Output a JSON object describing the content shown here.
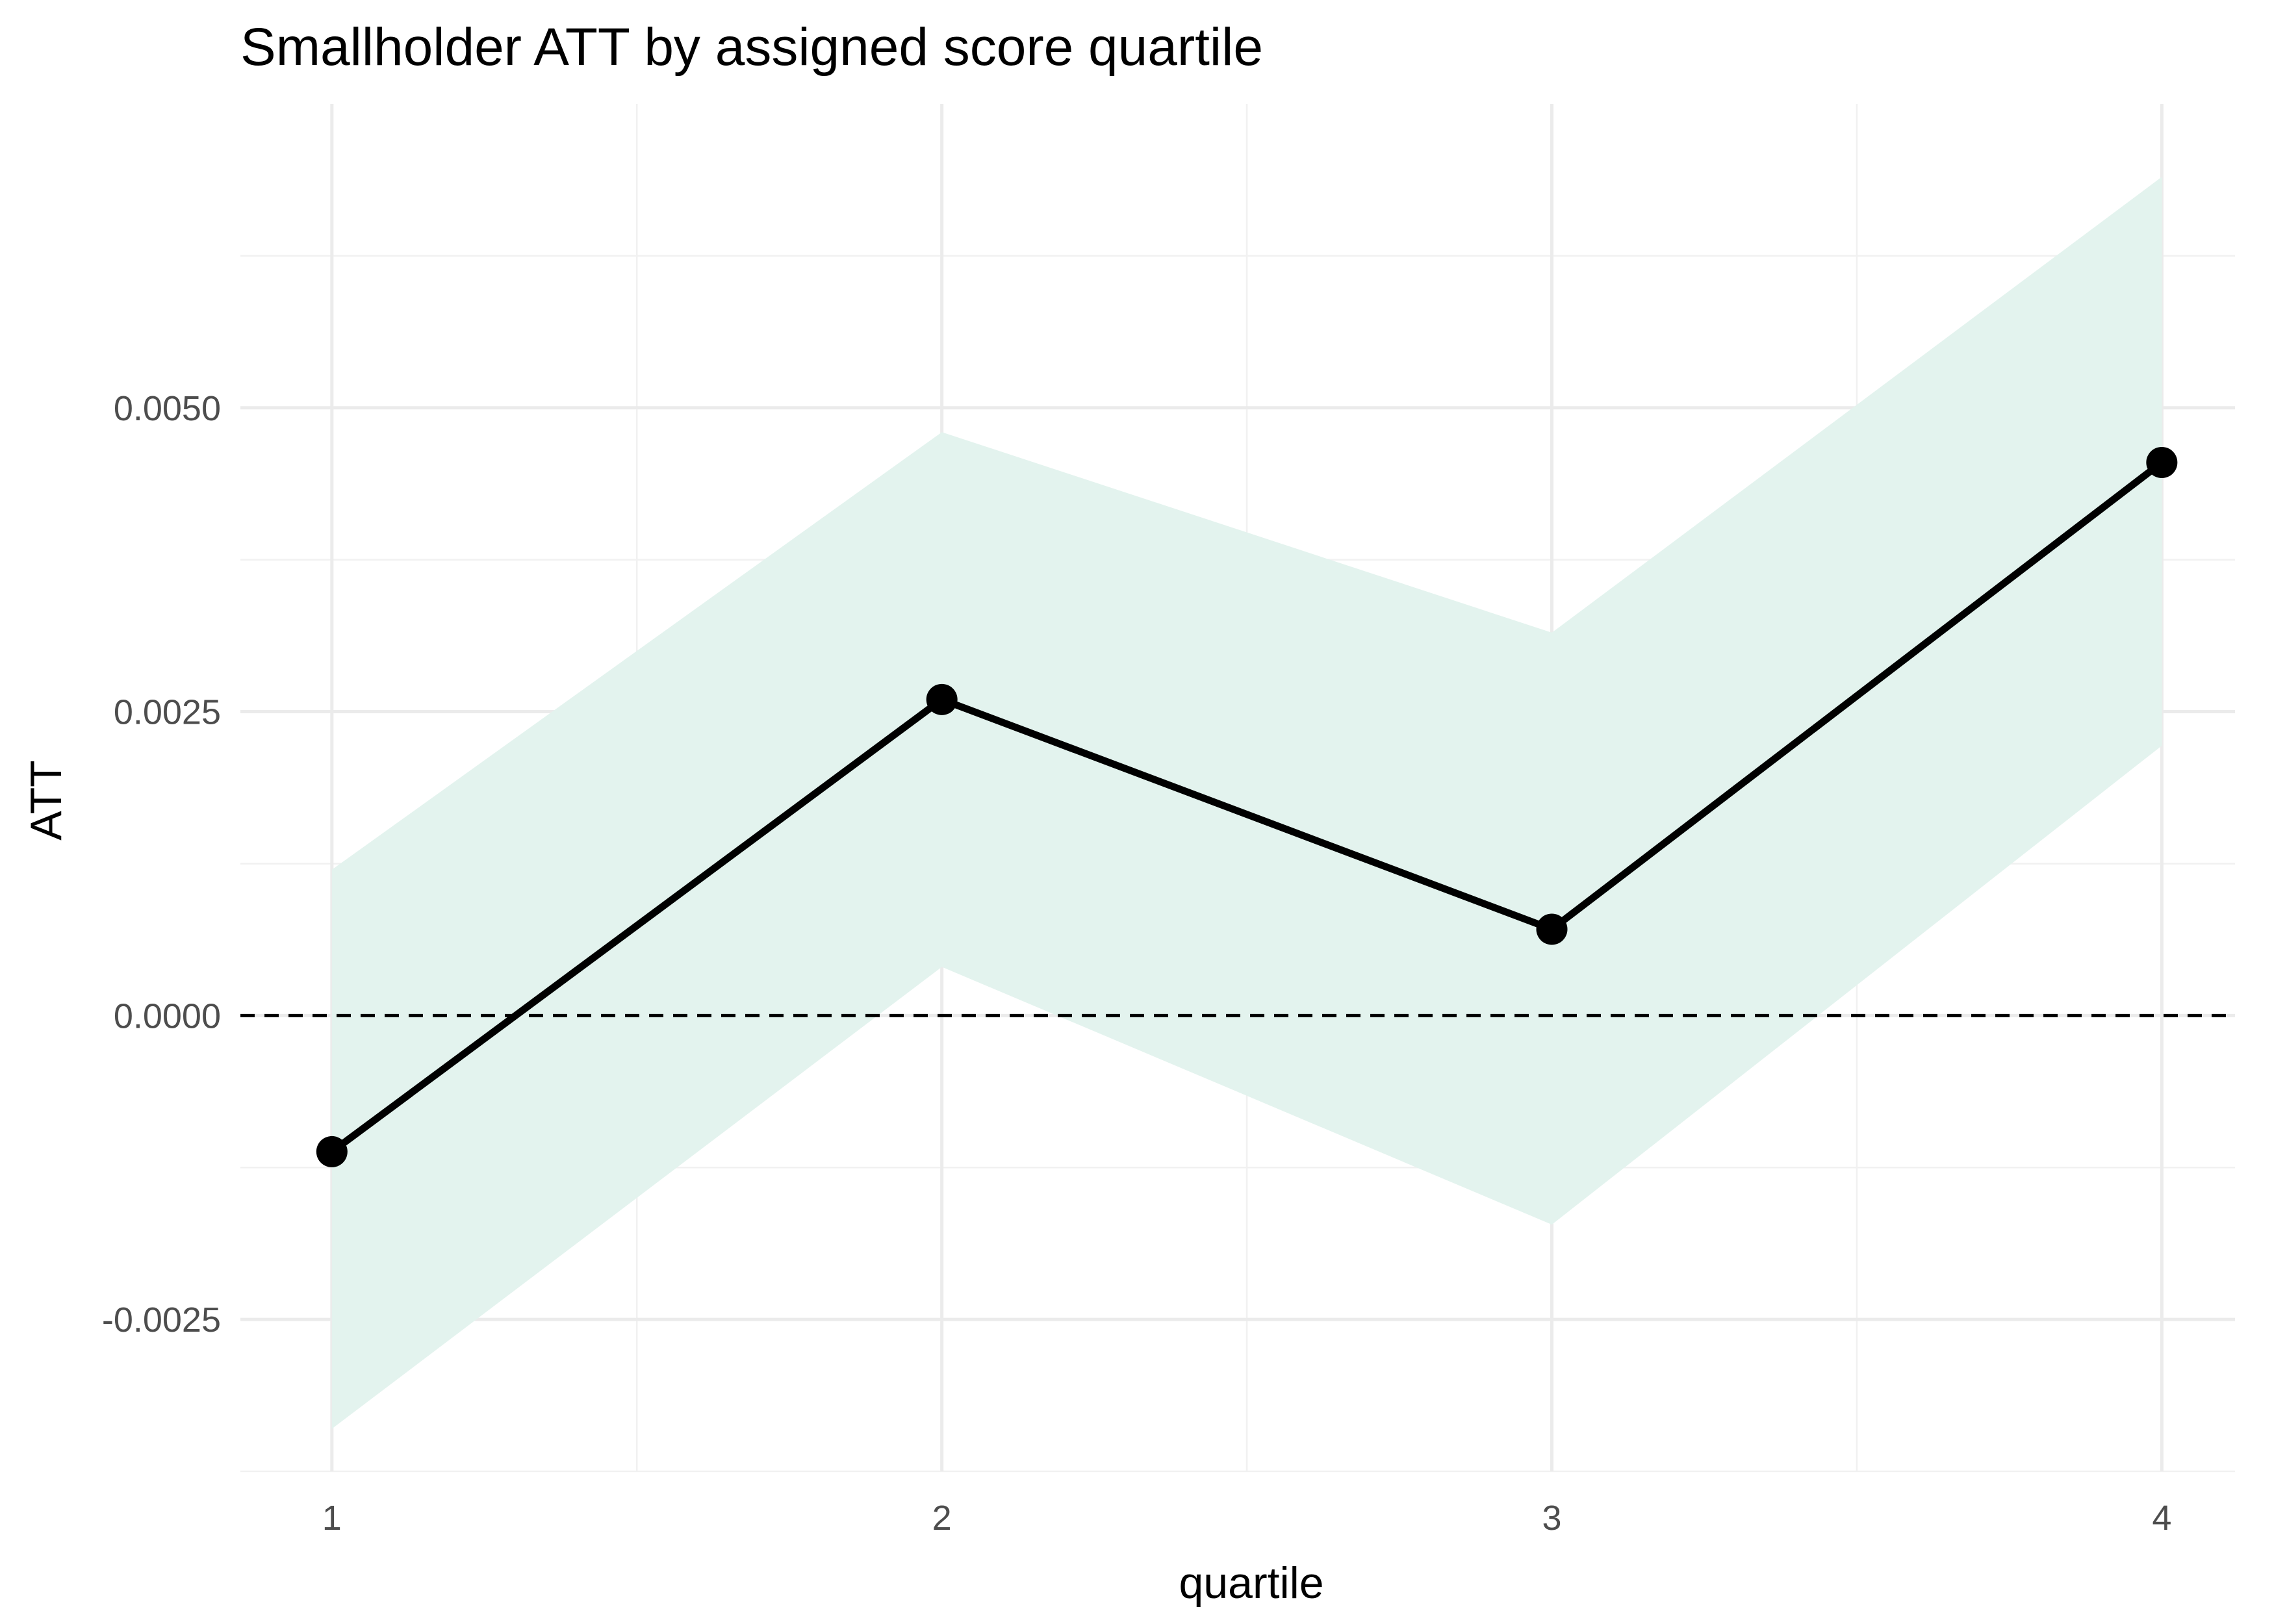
{
  "chart_data": {
    "type": "line",
    "title": "Smallholder ATT by assigned score quartile",
    "xlabel": "quartile",
    "ylabel": "ATT",
    "x": [
      1,
      2,
      3,
      4
    ],
    "x_tick_labels": [
      "1",
      "2",
      "3",
      "4"
    ],
    "series": [
      {
        "values": [
          -0.00112,
          0.0026,
          0.00071,
          0.00455
        ],
        "ci_lower": [
          -0.0034,
          0.0004,
          -0.00172,
          0.00222
        ],
        "ci_upper": [
          0.0012,
          0.0048,
          0.00315,
          0.0069
        ]
      }
    ],
    "reference_line": {
      "y": 0,
      "style": "dashed"
    },
    "xlim": [
      0.85,
      4.12
    ],
    "ylim": [
      -0.00375,
      0.0075
    ],
    "y_ticks": [
      -0.0025,
      0.0,
      0.0025,
      0.005
    ],
    "y_tick_labels": [
      "-0.0025",
      "0.0000",
      "0.0025",
      "0.0050"
    ],
    "grid": true,
    "legend": "none",
    "colors": {
      "line": "#000000",
      "ribbon": "#e3f3ee",
      "grid": "#ebebeb",
      "tick_text": "#4d4d4d"
    }
  }
}
